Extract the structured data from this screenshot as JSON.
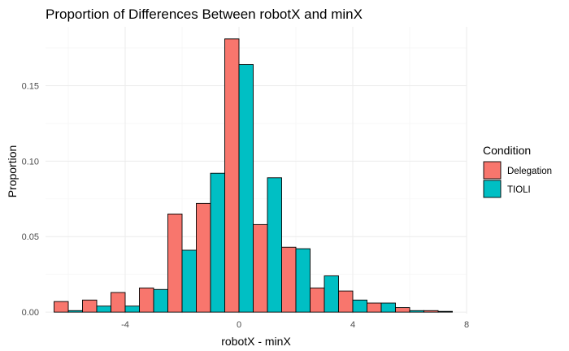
{
  "chart_data": {
    "type": "bar",
    "title": "Proportion of Differences Between robotX and minX",
    "xlabel": "robotX - minX",
    "ylabel": "Proportion",
    "xlim": [
      -6.8,
      8.0
    ],
    "ylim": [
      -0.001,
      0.189
    ],
    "x_ticks": [
      -4,
      0,
      4,
      8
    ],
    "x_tick_labels": [
      "-4",
      "0",
      "4",
      "8"
    ],
    "y_ticks": [
      0.0,
      0.05,
      0.1,
      0.15
    ],
    "y_tick_labels": [
      "0.00",
      "0.05",
      "0.10",
      "0.15"
    ],
    "grid": true,
    "legend_position": "right",
    "legend_title": "Condition",
    "bin_width": 1,
    "bin_centers": [
      -6,
      -5,
      -4,
      -3,
      -2,
      -1,
      0,
      1,
      2,
      3,
      4,
      5,
      6,
      7
    ],
    "series": [
      {
        "name": "Delegation",
        "color": "#F8766D",
        "values": [
          0.007,
          0.008,
          0.013,
          0.016,
          0.065,
          0.072,
          0.181,
          0.058,
          0.043,
          0.016,
          0.014,
          0.006,
          0.003,
          0.001
        ]
      },
      {
        "name": "TIOLI",
        "color": "#00BFC4",
        "values": [
          0.001,
          0.004,
          0.004,
          0.015,
          0.041,
          0.092,
          0.164,
          0.089,
          0.042,
          0.024,
          0.008,
          0.006,
          0.001,
          0.0005
        ]
      }
    ]
  }
}
